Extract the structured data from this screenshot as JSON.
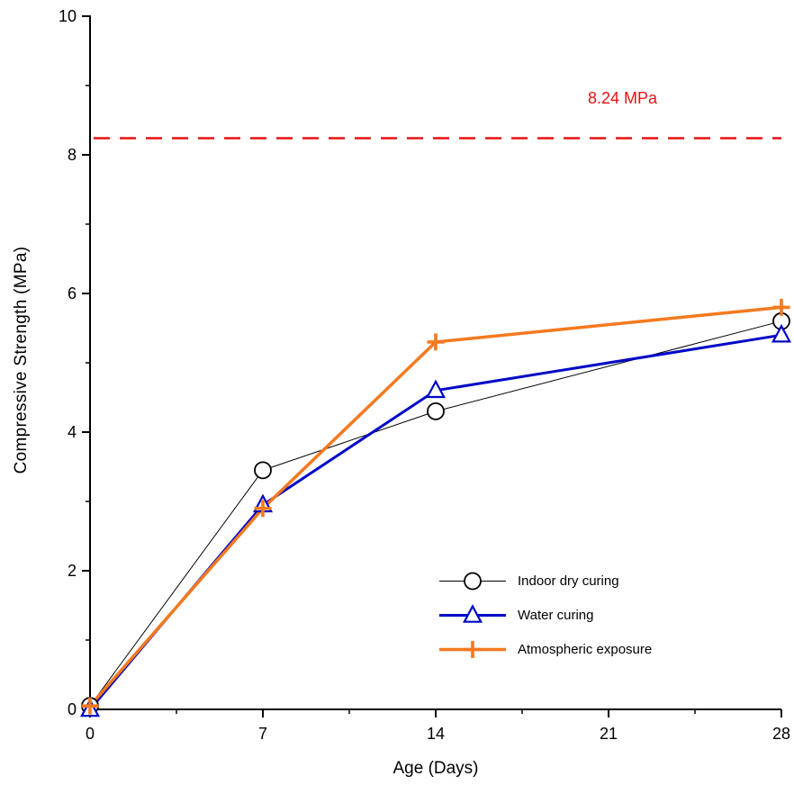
{
  "chart_data": {
    "type": "line",
    "title": "",
    "xlabel": "Age (Days)",
    "ylabel": "Compressive Strength (MPa)",
    "xlim": [
      0,
      28
    ],
    "ylim": [
      0,
      10
    ],
    "x_ticks": [
      0,
      7,
      14,
      21,
      28
    ],
    "y_ticks": [
      0,
      2,
      4,
      6,
      8,
      10
    ],
    "grid": false,
    "legend_position": "inside-bottom-right",
    "x": [
      0,
      7,
      14,
      28
    ],
    "series": [
      {
        "name": "Indoor dry curing",
        "values": [
          0.05,
          3.45,
          4.3,
          5.6
        ],
        "color": "#000000",
        "marker": "circle",
        "line_width": 1
      },
      {
        "name": "Water curing",
        "values": [
          0.0,
          2.95,
          4.6,
          5.4
        ],
        "color": "#0008c8",
        "marker": "triangle",
        "line_width": 3
      },
      {
        "name": "Atmospheric exposure",
        "values": [
          0.05,
          2.9,
          5.3,
          5.8
        ],
        "color": "#f4791f",
        "marker": "plus",
        "line_width": 3.5
      }
    ],
    "reference_line": {
      "value": 8.24,
      "label": "8.24 MPa",
      "color": "#e81212",
      "style": "dashed"
    },
    "axis_color": "#000000"
  }
}
